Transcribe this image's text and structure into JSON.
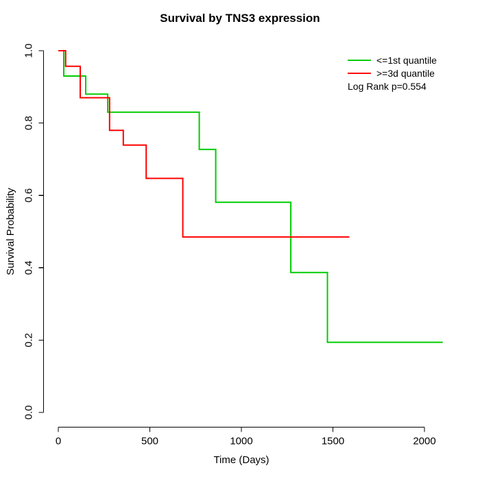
{
  "page": {
    "background": "#ffffff"
  },
  "chart_data": {
    "type": "line",
    "variant": "kaplan_meier_step",
    "title": "Survival by TNS3 expression",
    "xlabel": "Time (Days)",
    "ylabel": "Survival Probability",
    "x_ticks": [
      "0",
      "500",
      "1000",
      "1500",
      "2000"
    ],
    "x_tick_values": [
      0,
      500,
      1000,
      1500,
      2000
    ],
    "y_ticks": [
      "0.0",
      "0.2",
      "0.4",
      "0.6",
      "0.8",
      "1.0"
    ],
    "y_tick_values": [
      0,
      0.2,
      0.4,
      0.6,
      0.8,
      1.0
    ],
    "xlim": [
      0,
      2100
    ],
    "ylim": [
      0,
      1
    ],
    "grid": false,
    "legend_position": "top-right",
    "annotation": "Log Rank p=0.554",
    "series": [
      {
        "name": "<=1st quantile",
        "color": "#00cc00",
        "steps": [
          [
            0,
            1.0
          ],
          [
            30,
            0.93
          ],
          [
            150,
            0.88
          ],
          [
            270,
            0.83
          ],
          [
            770,
            0.727
          ],
          [
            860,
            0.581
          ],
          [
            1270,
            0.387
          ],
          [
            1470,
            0.194
          ],
          [
            2100,
            0.194
          ]
        ]
      },
      {
        "name": ">=3d quantile",
        "color": "#ff0000",
        "steps": [
          [
            0,
            1.0
          ],
          [
            40,
            0.957
          ],
          [
            120,
            0.87
          ],
          [
            280,
            0.78
          ],
          [
            355,
            0.739
          ],
          [
            480,
            0.647
          ],
          [
            680,
            0.485
          ],
          [
            1590,
            0.485
          ]
        ]
      }
    ]
  }
}
